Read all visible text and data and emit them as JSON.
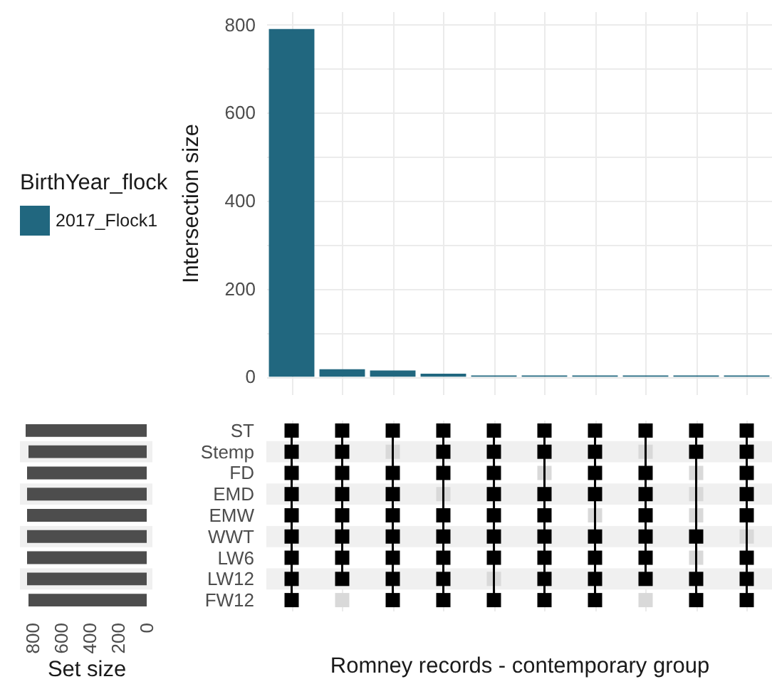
{
  "chart_data": [
    {
      "type": "bar",
      "ylabel": "Intersection size",
      "categories": [
        null,
        null,
        null,
        null,
        null,
        null,
        null,
        null,
        null,
        null
      ],
      "series": [
        {
          "name": "2017_Flock1",
          "color": "#21677f",
          "values": [
            790,
            17,
            14,
            7,
            3,
            3,
            3,
            3,
            3,
            3
          ]
        }
      ],
      "legend_title": "BirthYear_flock",
      "legend": "left",
      "ylim": [
        -40,
        830
      ],
      "yticks": [
        0,
        {
          "value": 100,
          "label": null
        },
        200,
        {
          "value": 300,
          "label": null
        },
        400,
        {
          "value": 500,
          "label": null
        },
        600,
        {
          "value": 700,
          "label": null
        },
        800
      ],
      "grid": true
    },
    {
      "type": "bar",
      "orientation": "horizontal",
      "categories": [
        "ST",
        "Stemp",
        "FD",
        "EMD",
        "EMW",
        "WWT",
        "LW6",
        "LW12",
        "FW12"
      ],
      "values": [
        850,
        830,
        840,
        840,
        840,
        840,
        840,
        840,
        830
      ],
      "color": "#4d4d4d",
      "xlabel": "Set size",
      "xlim": [
        890,
        -40
      ],
      "xticks": [
        0,
        200,
        400,
        600,
        800
      ],
      "tick_labels": "x",
      "bands": [
        {
          "axis": "y",
          "from": "Stemp",
          "to": "Stemp",
          "color": "#f0f0f0"
        },
        {
          "axis": "y",
          "from": "EMD",
          "to": "EMD",
          "color": "#f0f0f0"
        },
        {
          "axis": "y",
          "from": "WWT",
          "to": "WWT",
          "color": "#f0f0f0"
        },
        {
          "axis": "y",
          "from": "LW12",
          "to": "LW12",
          "color": "#f0f0f0"
        }
      ]
    },
    {
      "type": "heatmap",
      "xlabel": "Romney records - contemporary group",
      "categories": [
        null,
        null,
        null,
        null,
        null,
        null,
        null,
        null,
        null,
        null
      ],
      "y_categories": [
        "ST",
        "Stemp",
        "FD",
        "EMD",
        "EMW",
        "WWT",
        "LW6",
        "LW12",
        "FW12"
      ],
      "cells": [
        [
          true,
          true,
          true,
          true,
          true,
          true,
          true,
          true,
          true,
          true
        ],
        [
          true,
          true,
          false,
          true,
          true,
          true,
          true,
          false,
          true,
          true
        ],
        [
          true,
          true,
          true,
          true,
          true,
          false,
          true,
          true,
          false,
          true
        ],
        [
          true,
          true,
          true,
          false,
          true,
          true,
          true,
          true,
          false,
          true
        ],
        [
          true,
          true,
          true,
          true,
          true,
          true,
          false,
          true,
          false,
          true
        ],
        [
          true,
          true,
          true,
          true,
          true,
          true,
          true,
          true,
          true,
          false
        ],
        [
          true,
          true,
          true,
          true,
          true,
          true,
          true,
          true,
          false,
          true
        ],
        [
          true,
          true,
          true,
          true,
          false,
          true,
          true,
          true,
          true,
          true
        ],
        [
          true,
          false,
          true,
          true,
          true,
          true,
          true,
          false,
          true,
          true
        ]
      ],
      "colors": [
        "#d9d9d9",
        "#000000"
      ],
      "grid": "x",
      "bands": [
        {
          "axis": "y",
          "from": "Stemp",
          "to": "Stemp",
          "color": "#f0f0f0"
        },
        {
          "axis": "y",
          "from": "EMD",
          "to": "EMD",
          "color": "#f0f0f0"
        },
        {
          "axis": "y",
          "from": "WWT",
          "to": "WWT",
          "color": "#f0f0f0"
        },
        {
          "axis": "y",
          "from": "LW12",
          "to": "LW12",
          "color": "#f0f0f0"
        }
      ]
    }
  ]
}
